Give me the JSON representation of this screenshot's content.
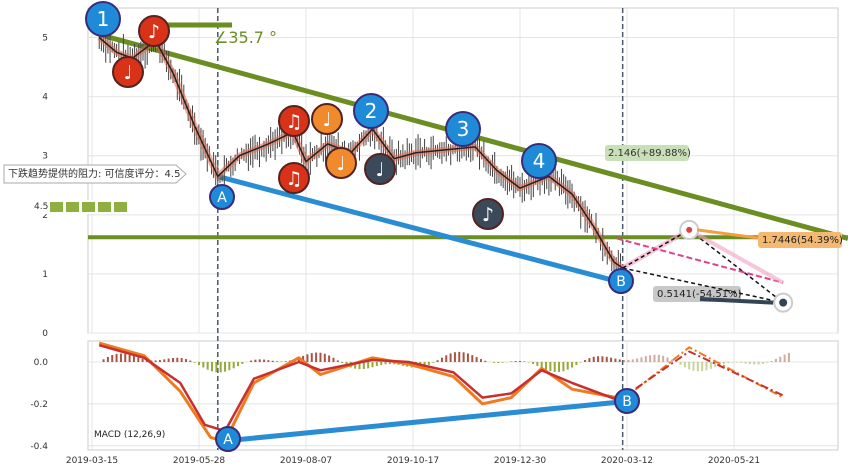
{
  "chart_data": [
    {
      "type": "line",
      "title": "",
      "xlabel": "",
      "ylabel": "",
      "ylim": [
        0,
        5.5
      ],
      "y_ticks": [
        "0",
        "1",
        "2",
        "3",
        "4",
        "5"
      ],
      "x_ticks": [
        "2019-03-15",
        "2019-05-28",
        "2019-08-07",
        "2019-10-17",
        "2019-12-30",
        "2020-03-12",
        "2020-05-21"
      ],
      "grid": true,
      "series": [
        {
          "values_points": [
            [
              "2019-03-20",
              5.0
            ],
            [
              "2019-04-01",
              4.75
            ],
            [
              "2019-04-12",
              4.65
            ],
            [
              "2019-04-28",
              4.95
            ],
            [
              "2019-05-10",
              4.4
            ],
            [
              "2019-05-25",
              3.5
            ],
            [
              "2019-06-10",
              2.65
            ],
            [
              "2019-06-25",
              3.0
            ],
            [
              "2019-07-15",
              3.2
            ],
            [
              "2019-08-01",
              3.4
            ],
            [
              "2019-08-10",
              2.9
            ],
            [
              "2019-08-25",
              3.2
            ],
            [
              "2019-09-10",
              3.05
            ],
            [
              "2019-09-25",
              3.45
            ],
            [
              "2019-10-10",
              2.95
            ],
            [
              "2019-10-25",
              3.05
            ],
            [
              "2019-11-15",
              3.1
            ],
            [
              "2019-12-05",
              3.15
            ],
            [
              "2019-12-20",
              2.75
            ],
            [
              "2020-01-05",
              2.45
            ],
            [
              "2020-01-25",
              2.65
            ],
            [
              "2020-02-10",
              2.35
            ],
            [
              "2020-02-25",
              1.8
            ],
            [
              "2020-03-10",
              1.2
            ],
            [
              "2020-03-16",
              1.1
            ]
          ]
        }
      ],
      "colors": {
        "trend": "#6b8e23",
        "support": "#2a8dd4",
        "wave": "#e46a4c",
        "pathway_up": "#e46a8c",
        "projection": "#333333"
      },
      "annotations": {
        "angle_label": "∠35.7 °",
        "resistance_label": "下跌趋势提供的阻力: 可信度评分：4.5",
        "rating_value": "4.5",
        "price_target_up": "2.146(+89.88%)",
        "target_a": "1.7446(54.39%)",
        "target_b": "0.5141(-54.51%)",
        "markers": [
          "1",
          "2",
          "3",
          "4",
          "A",
          "B"
        ]
      }
    },
    {
      "type": "line",
      "title": "",
      "xlabel": "",
      "ylabel": "",
      "ylim": [
        -0.42,
        0.1
      ],
      "y_ticks": [
        "0.0",
        "-0.2",
        "-0.4"
      ],
      "indicator_label": "MACD (12,26,9)",
      "series": [
        {
          "values_points": [
            [
              "2019-03-20",
              0.08
            ],
            [
              "2019-04-20",
              0.02
            ],
            [
              "2019-05-15",
              -0.1
            ],
            [
              "2019-06-01",
              -0.3
            ],
            [
              "2019-06-15",
              -0.33
            ],
            [
              "2019-07-05",
              -0.08
            ],
            [
              "2019-08-05",
              0.0
            ],
            [
              "2019-08-20",
              -0.04
            ],
            [
              "2019-09-25",
              0.01
            ],
            [
              "2019-10-20",
              0.0
            ],
            [
              "2019-11-20",
              -0.05
            ],
            [
              "2019-12-10",
              -0.17
            ],
            [
              "2019-12-30",
              -0.15
            ],
            [
              "2020-01-20",
              -0.04
            ],
            [
              "2020-02-10",
              -0.1
            ],
            [
              "2020-03-12",
              -0.18
            ]
          ]
        },
        {
          "values_points": [
            [
              "2019-03-20",
              0.09
            ],
            [
              "2019-04-20",
              0.03
            ],
            [
              "2019-05-15",
              -0.14
            ],
            [
              "2019-06-05",
              -0.36
            ],
            [
              "2019-06-15",
              -0.38
            ],
            [
              "2019-07-05",
              -0.1
            ],
            [
              "2019-08-05",
              0.02
            ],
            [
              "2019-08-20",
              -0.06
            ],
            [
              "2019-09-25",
              0.02
            ],
            [
              "2019-10-20",
              -0.01
            ],
            [
              "2019-11-20",
              -0.07
            ],
            [
              "2019-12-10",
              -0.2
            ],
            [
              "2019-12-30",
              -0.17
            ],
            [
              "2020-01-20",
              -0.03
            ],
            [
              "2020-02-10",
              -0.13
            ],
            [
              "2020-03-12",
              -0.17
            ]
          ]
        }
      ]
    }
  ]
}
